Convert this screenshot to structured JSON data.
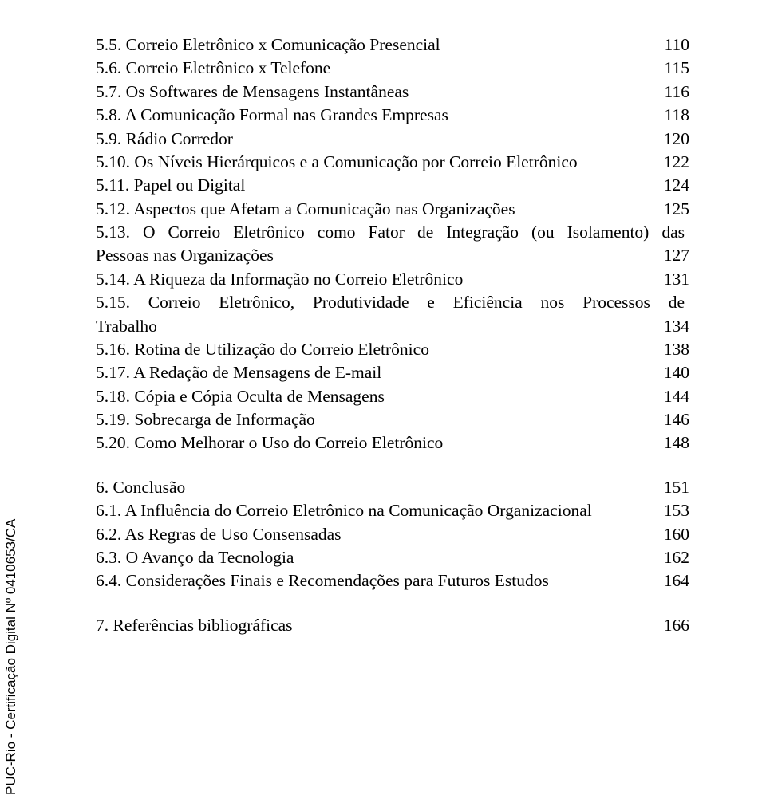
{
  "font": {
    "body": "Times New Roman",
    "side": "Arial"
  },
  "colors": {
    "text": "#000000",
    "bg": "#ffffff"
  },
  "fontsize": {
    "body_pt": 21.5,
    "side_pt": 17
  },
  "toc": {
    "block1": [
      {
        "text": "5.5. Correio Eletrônico x Comunicação Presencial",
        "page": "110"
      },
      {
        "text": "5.6. Correio Eletrônico x Telefone",
        "page": "115"
      },
      {
        "text": "5.7. Os Softwares de Mensagens Instantâneas",
        "page": "116"
      },
      {
        "text": "5.8. A Comunicação Formal nas Grandes Empresas",
        "page": "118"
      },
      {
        "text": "5.9. Rádio Corredor",
        "page": "120"
      },
      {
        "text": "5.10. Os Níveis Hierárquicos e a Comunicação por Correio Eletrônico",
        "page": "122"
      },
      {
        "text": "5.11. Papel ou Digital",
        "page": "124"
      },
      {
        "text": "5.12. Aspectos que Afetam a Comunicação nas Organizações",
        "page": "125"
      }
    ],
    "wrap1": {
      "line1": "5.13. O Correio Eletrônico como Fator de Integração (ou Isolamento) das",
      "line2": "Pessoas nas Organizações",
      "page": "127"
    },
    "block2": [
      {
        "text": "5.14. A Riqueza da Informação no Correio Eletrônico",
        "page": "131"
      }
    ],
    "wrap2": {
      "line1": "5.15. Correio Eletrônico, Produtividade e Eficiência nos Processos de",
      "line2": "Trabalho",
      "page": "134"
    },
    "block3": [
      {
        "text": "5.16. Rotina de Utilização do Correio Eletrônico",
        "page": "138"
      },
      {
        "text": "5.17. A Redação de Mensagens de E-mail",
        "page": "140"
      },
      {
        "text": "5.18. Cópia e Cópia Oculta de Mensagens",
        "page": "144"
      },
      {
        "text": "5.19. Sobrecarga de Informação",
        "page": "146"
      },
      {
        "text": "5.20. Como Melhorar o Uso do Correio Eletrônico",
        "page": "148"
      }
    ],
    "block4": [
      {
        "text": "6. Conclusão",
        "page": "151"
      },
      {
        "text": "6.1. A Influência do Correio Eletrônico na Comunicação Organizacional",
        "page": "153"
      },
      {
        "text": "6.2. As Regras de Uso Consensadas",
        "page": "160"
      },
      {
        "text": "6.3. O Avanço da Tecnologia",
        "page": "162"
      },
      {
        "text": "6.4. Considerações Finais e Recomendações para Futuros Estudos",
        "page": "164"
      }
    ],
    "block5": [
      {
        "text": "7. Referências bibliográficas",
        "page": "166"
      }
    ]
  },
  "side_label": "PUC-Rio - Certificação Digital Nº 0410653/CA"
}
